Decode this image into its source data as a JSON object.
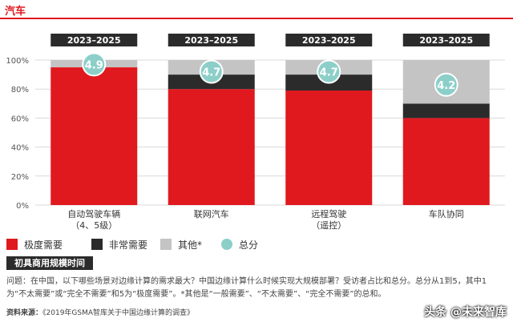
{
  "header": {
    "title": "汽车"
  },
  "chart_data": {
    "type": "bar",
    "stacked": true,
    "categories": [
      "自动驾驶车辆\n（4、5级）",
      "联网汽车",
      "远程驾驶\n（遥控）",
      "车队协同"
    ],
    "period_labels": [
      "2023–2025",
      "2023–2025",
      "2023–2025",
      "2023–2025"
    ],
    "series": [
      {
        "name": "极度需要",
        "values": [
          95,
          80,
          79,
          60
        ],
        "color": "#e0191f"
      },
      {
        "name": "非常需要",
        "values": [
          0,
          10,
          11,
          10
        ],
        "color": "#2b2b2b"
      },
      {
        "name": "其他*",
        "values": [
          5,
          10,
          10,
          30
        ],
        "color": "#c4c4c4"
      }
    ],
    "totals": {
      "name": "总分",
      "values": [
        "4.9",
        "4.7",
        "4.7",
        "4.2"
      ],
      "y_positions": [
        97,
        92,
        92,
        83
      ],
      "color": "#8ccfc9"
    },
    "yticks": [
      "0%",
      "20%",
      "40%",
      "60%",
      "80%",
      "100%"
    ],
    "ylim": [
      0,
      100
    ],
    "grid": true,
    "legend_position": "bottom"
  },
  "legend": [
    {
      "label": "极度需要",
      "color": "#e0191f",
      "shape": "square"
    },
    {
      "label": "非常需要",
      "color": "#2b2b2b",
      "shape": "square"
    },
    {
      "label": "其他*",
      "color": "#c4c4c4",
      "shape": "square"
    },
    {
      "label": "总分",
      "color": "#8ccfc9",
      "shape": "circle"
    }
  ],
  "timing_badge": "初具商用规模时间",
  "question": "问题：在中国，以下哪些场景对边缘计算的需求最大？中国边缘计算什么时候实现大规模部署？受访者占比和总分。总分从1到5，其中1为“不太需要”或“完全不需要”和5为“极度需要”。*其他是“一般需要”、“不太需要”、“完全不需要”的总和。",
  "source_label": "资料来源：",
  "source_text": "《2019年GSMA智库关于中国边缘计算的调查》",
  "watermark": "头条 @未来智库"
}
